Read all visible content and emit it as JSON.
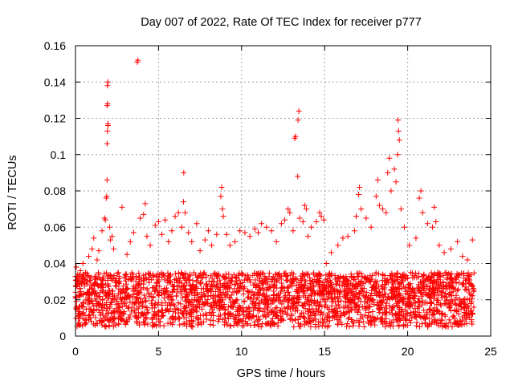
{
  "chart_data": {
    "type": "scatter",
    "title": "Day 007 of 2022, Rate Of TEC Index for receiver p777",
    "xlabel": "GPS time / hours",
    "ylabel": "ROTI / TECUs",
    "xlim": [
      0,
      25
    ],
    "ylim": [
      0,
      0.16
    ],
    "xticks": [
      0,
      5,
      10,
      15,
      20,
      25
    ],
    "xtick_labels": [
      "0",
      "5",
      "10",
      "15",
      "20",
      "25"
    ],
    "yticks": [
      0,
      0.02,
      0.04,
      0.06,
      0.08,
      0.1,
      0.12,
      0.14,
      0.16
    ],
    "ytick_labels": [
      "0",
      "0.02",
      "0.04",
      "0.06",
      "0.08",
      "0.1",
      "0.12",
      "0.14",
      "0.16"
    ],
    "grid": true,
    "marker": "+",
    "color": "#ff0000",
    "dense_band": {
      "description": "continuous dense cloud of points between roughly 0.005 and 0.035 TECU over 0–24 h",
      "x_range": [
        0,
        24
      ],
      "y_range": [
        0.005,
        0.035
      ],
      "n_points": 2600
    },
    "points": [
      [
        0.05,
        0.038
      ],
      [
        0.15,
        0.031
      ],
      [
        0.3,
        0.036
      ],
      [
        0.45,
        0.04
      ],
      [
        0.6,
        0.035
      ],
      [
        0.8,
        0.044
      ],
      [
        1.0,
        0.048
      ],
      [
        1.1,
        0.054
      ],
      [
        1.3,
        0.042
      ],
      [
        1.4,
        0.047
      ],
      [
        1.6,
        0.058
      ],
      [
        1.75,
        0.065
      ],
      [
        1.8,
        0.064
      ],
      [
        1.85,
        0.076
      ],
      [
        1.88,
        0.077
      ],
      [
        1.9,
        0.086
      ],
      [
        1.9,
        0.106
      ],
      [
        1.92,
        0.113
      ],
      [
        1.95,
        0.117
      ],
      [
        1.96,
        0.116
      ],
      [
        1.9,
        0.127
      ],
      [
        1.93,
        0.128
      ],
      [
        1.92,
        0.138
      ],
      [
        1.95,
        0.14
      ],
      [
        2.05,
        0.06
      ],
      [
        2.1,
        0.053
      ],
      [
        2.2,
        0.055
      ],
      [
        2.3,
        0.048
      ],
      [
        2.8,
        0.071
      ],
      [
        3.1,
        0.045
      ],
      [
        3.3,
        0.052
      ],
      [
        3.5,
        0.057
      ],
      [
        3.72,
        0.151
      ],
      [
        3.76,
        0.152
      ],
      [
        3.9,
        0.065
      ],
      [
        4.1,
        0.067
      ],
      [
        4.2,
        0.073
      ],
      [
        4.3,
        0.055
      ],
      [
        4.5,
        0.05
      ],
      [
        4.8,
        0.061
      ],
      [
        5.0,
        0.063
      ],
      [
        5.2,
        0.056
      ],
      [
        5.4,
        0.064
      ],
      [
        5.6,
        0.052
      ],
      [
        5.8,
        0.058
      ],
      [
        6.0,
        0.066
      ],
      [
        6.2,
        0.068
      ],
      [
        6.4,
        0.06
      ],
      [
        6.5,
        0.074
      ],
      [
        6.52,
        0.09
      ],
      [
        6.6,
        0.068
      ],
      [
        6.8,
        0.057
      ],
      [
        7.0,
        0.052
      ],
      [
        7.3,
        0.062
      ],
      [
        7.5,
        0.047
      ],
      [
        7.8,
        0.053
      ],
      [
        8.0,
        0.058
      ],
      [
        8.2,
        0.05
      ],
      [
        8.5,
        0.056
      ],
      [
        8.75,
        0.077
      ],
      [
        8.8,
        0.082
      ],
      [
        8.85,
        0.07
      ],
      [
        8.9,
        0.066
      ],
      [
        9.1,
        0.056
      ],
      [
        9.3,
        0.05
      ],
      [
        9.6,
        0.052
      ],
      [
        9.9,
        0.058
      ],
      [
        10.2,
        0.057
      ],
      [
        10.5,
        0.055
      ],
      [
        10.8,
        0.059
      ],
      [
        11.0,
        0.057
      ],
      [
        11.2,
        0.062
      ],
      [
        11.5,
        0.06
      ],
      [
        11.8,
        0.058
      ],
      [
        12.1,
        0.052
      ],
      [
        12.4,
        0.062
      ],
      [
        12.6,
        0.064
      ],
      [
        12.8,
        0.07
      ],
      [
        12.9,
        0.068
      ],
      [
        13.1,
        0.058
      ],
      [
        13.2,
        0.109
      ],
      [
        13.25,
        0.11
      ],
      [
        13.4,
        0.119
      ],
      [
        13.45,
        0.124
      ],
      [
        13.38,
        0.088
      ],
      [
        13.5,
        0.065
      ],
      [
        13.7,
        0.063
      ],
      [
        13.8,
        0.072
      ],
      [
        13.9,
        0.07
      ],
      [
        14.0,
        0.055
      ],
      [
        14.2,
        0.06
      ],
      [
        14.5,
        0.063
      ],
      [
        14.7,
        0.068
      ],
      [
        14.8,
        0.066
      ],
      [
        14.95,
        0.064
      ],
      [
        15.1,
        0.04
      ],
      [
        15.4,
        0.046
      ],
      [
        15.8,
        0.05
      ],
      [
        16.1,
        0.054
      ],
      [
        16.4,
        0.055
      ],
      [
        16.8,
        0.058
      ],
      [
        16.9,
        0.066
      ],
      [
        17.05,
        0.078
      ],
      [
        17.1,
        0.082
      ],
      [
        17.2,
        0.07
      ],
      [
        17.5,
        0.065
      ],
      [
        17.8,
        0.06
      ],
      [
        18.1,
        0.077
      ],
      [
        18.2,
        0.086
      ],
      [
        18.3,
        0.072
      ],
      [
        18.5,
        0.07
      ],
      [
        18.7,
        0.068
      ],
      [
        18.8,
        0.09
      ],
      [
        18.9,
        0.098
      ],
      [
        19.0,
        0.08
      ],
      [
        19.2,
        0.092
      ],
      [
        19.3,
        0.085
      ],
      [
        19.4,
        0.1
      ],
      [
        19.45,
        0.113
      ],
      [
        19.42,
        0.119
      ],
      [
        19.5,
        0.108
      ],
      [
        19.6,
        0.07
      ],
      [
        19.8,
        0.06
      ],
      [
        20.1,
        0.05
      ],
      [
        20.5,
        0.054
      ],
      [
        20.7,
        0.076
      ],
      [
        20.8,
        0.08
      ],
      [
        20.9,
        0.068
      ],
      [
        21.2,
        0.062
      ],
      [
        21.5,
        0.06
      ],
      [
        21.6,
        0.071
      ],
      [
        21.7,
        0.063
      ],
      [
        21.9,
        0.05
      ],
      [
        22.2,
        0.046
      ],
      [
        22.6,
        0.048
      ],
      [
        23.0,
        0.052
      ],
      [
        23.3,
        0.044
      ],
      [
        23.6,
        0.042
      ],
      [
        23.9,
        0.053
      ]
    ]
  }
}
